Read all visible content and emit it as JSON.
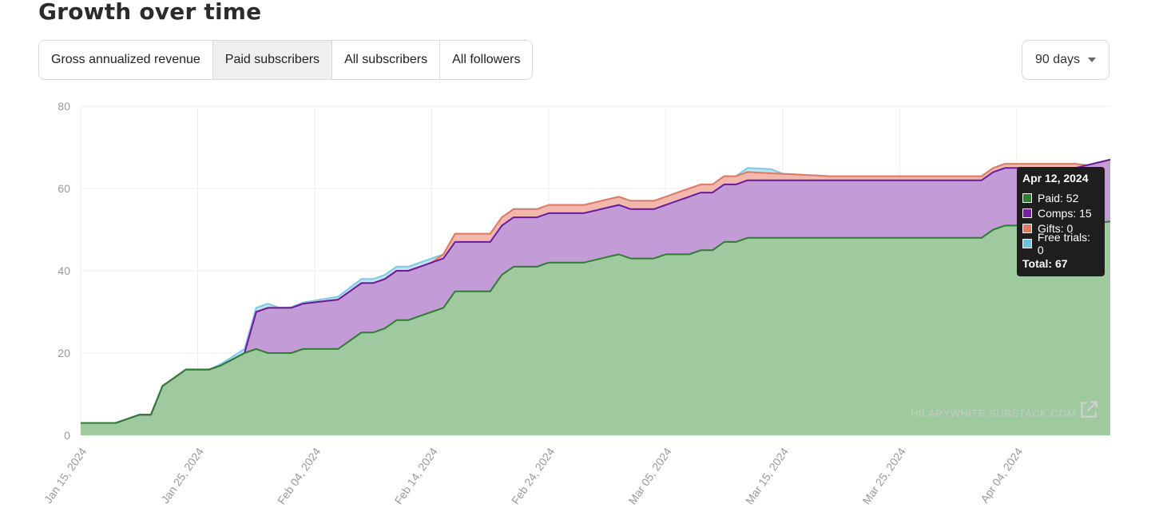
{
  "header": {
    "title": "Growth over time"
  },
  "tabs": [
    {
      "label": "Gross annualized revenue",
      "active": false
    },
    {
      "label": "Paid subscribers",
      "active": true
    },
    {
      "label": "All subscribers",
      "active": false
    },
    {
      "label": "All followers",
      "active": false
    }
  ],
  "range": {
    "label": "90 days",
    "icon": "caret-down-icon"
  },
  "tooltip": {
    "date": "Apr 12, 2024",
    "rows": [
      {
        "label": "Paid: 52",
        "color": "#2e7d32"
      },
      {
        "label": "Comps: 15",
        "color": "#7b1fa2"
      },
      {
        "label": "Gifts: 0",
        "color": "#e07a5f"
      },
      {
        "label": "Free trials: 0",
        "color": "#6fc3df"
      }
    ],
    "total": "Total: 67"
  },
  "watermark": "HILARYWHITE.SUBSTACK.COM",
  "colors": {
    "paid_line": "#2e7d32",
    "paid_fill": "#9fc99e",
    "comps_line": "#6a1b9a",
    "comps_fill": "#c39bd6",
    "gifts_line": "#e07a5f",
    "gifts_fill": "#f2b8ad",
    "trials_line": "#7ec8e3",
    "trials_fill": "#bfe3f0",
    "grid": "#eeeeee"
  },
  "chart_data": {
    "type": "area",
    "stacked": true,
    "title": "",
    "xlabel": "",
    "ylabel": "",
    "x_start": "Jan 15, 2024",
    "x_end": "Apr 12, 2024",
    "x_ticks": [
      "Jan 15, 2024",
      "Jan 25, 2024",
      "Feb 04, 2024",
      "Feb 14, 2024",
      "Feb 24, 2024",
      "Mar 05, 2024",
      "Mar 15, 2024",
      "Mar 25, 2024",
      "Apr 04, 2024"
    ],
    "y_ticks": [
      0,
      20,
      40,
      60,
      80
    ],
    "ylim": [
      0,
      80
    ],
    "grid": true,
    "series": [
      {
        "name": "Paid",
        "points": [
          [
            "Jan 15, 2024",
            3
          ],
          [
            "Jan 18, 2024",
            3
          ],
          [
            "Jan 20, 2024",
            5
          ],
          [
            "Jan 21, 2024",
            5
          ],
          [
            "Jan 22, 2024",
            12
          ],
          [
            "Jan 24, 2024",
            16
          ],
          [
            "Jan 26, 2024",
            16
          ],
          [
            "Jan 27, 2024",
            17
          ],
          [
            "Jan 29, 2024",
            20
          ],
          [
            "Jan 30, 2024",
            21
          ],
          [
            "Jan 31, 2024",
            20
          ],
          [
            "Feb 02, 2024",
            20
          ],
          [
            "Feb 03, 2024",
            21
          ],
          [
            "Feb 06, 2024",
            21
          ],
          [
            "Feb 08, 2024",
            25
          ],
          [
            "Feb 09, 2024",
            25
          ],
          [
            "Feb 10, 2024",
            26
          ],
          [
            "Feb 11, 2024",
            28
          ],
          [
            "Feb 12, 2024",
            28
          ],
          [
            "Feb 14, 2024",
            30
          ],
          [
            "Feb 15, 2024",
            31
          ],
          [
            "Feb 16, 2024",
            35
          ],
          [
            "Feb 19, 2024",
            35
          ],
          [
            "Feb 20, 2024",
            39
          ],
          [
            "Feb 21, 2024",
            41
          ],
          [
            "Feb 23, 2024",
            41
          ],
          [
            "Feb 24, 2024",
            42
          ],
          [
            "Feb 27, 2024",
            42
          ],
          [
            "Mar 01, 2024",
            44
          ],
          [
            "Mar 02, 2024",
            43
          ],
          [
            "Mar 04, 2024",
            43
          ],
          [
            "Mar 05, 2024",
            44
          ],
          [
            "Mar 07, 2024",
            44
          ],
          [
            "Mar 08, 2024",
            45
          ],
          [
            "Mar 09, 2024",
            45
          ],
          [
            "Mar 10, 2024",
            47
          ],
          [
            "Mar 11, 2024",
            47
          ],
          [
            "Mar 12, 2024",
            48
          ],
          [
            "Mar 19, 2024",
            48
          ],
          [
            "Apr 01, 2024",
            48
          ],
          [
            "Apr 02, 2024",
            50
          ],
          [
            "Apr 03, 2024",
            51
          ],
          [
            "Apr 09, 2024",
            51
          ],
          [
            "Apr 12, 2024",
            52
          ]
        ]
      },
      {
        "name": "Comps",
        "points": [
          [
            "Jan 15, 2024",
            0
          ],
          [
            "Jan 29, 2024",
            0
          ],
          [
            "Jan 30, 2024",
            9
          ],
          [
            "Jan 31, 2024",
            11
          ],
          [
            "Feb 02, 2024",
            11
          ],
          [
            "Feb 03, 2024",
            11
          ],
          [
            "Feb 06, 2024",
            12
          ],
          [
            "Feb 08, 2024",
            12
          ],
          [
            "Feb 09, 2024",
            12
          ],
          [
            "Feb 10, 2024",
            12
          ],
          [
            "Feb 11, 2024",
            12
          ],
          [
            "Feb 12, 2024",
            12
          ],
          [
            "Feb 14, 2024",
            12
          ],
          [
            "Feb 15, 2024",
            12
          ],
          [
            "Feb 16, 2024",
            12
          ],
          [
            "Feb 19, 2024",
            12
          ],
          [
            "Feb 20, 2024",
            12
          ],
          [
            "Feb 21, 2024",
            12
          ],
          [
            "Feb 23, 2024",
            12
          ],
          [
            "Feb 24, 2024",
            12
          ],
          [
            "Feb 27, 2024",
            12
          ],
          [
            "Mar 01, 2024",
            12
          ],
          [
            "Mar 02, 2024",
            12
          ],
          [
            "Mar 04, 2024",
            12
          ],
          [
            "Mar 05, 2024",
            12
          ],
          [
            "Mar 07, 2024",
            14
          ],
          [
            "Mar 08, 2024",
            14
          ],
          [
            "Mar 09, 2024",
            14
          ],
          [
            "Mar 10, 2024",
            14
          ],
          [
            "Mar 11, 2024",
            14
          ],
          [
            "Mar 12, 2024",
            14
          ],
          [
            "Mar 19, 2024",
            14
          ],
          [
            "Apr 01, 2024",
            14
          ],
          [
            "Apr 02, 2024",
            14
          ],
          [
            "Apr 03, 2024",
            14
          ],
          [
            "Apr 09, 2024",
            14
          ],
          [
            "Apr 12, 2024",
            15
          ]
        ]
      },
      {
        "name": "Gifts",
        "points": [
          [
            "Jan 15, 2024",
            0
          ],
          [
            "Feb 14, 2024",
            0
          ],
          [
            "Feb 15, 2024",
            1
          ],
          [
            "Feb 16, 2024",
            2
          ],
          [
            "Feb 19, 2024",
            2
          ],
          [
            "Feb 20, 2024",
            2
          ],
          [
            "Feb 21, 2024",
            2
          ],
          [
            "Feb 24, 2024",
            2
          ],
          [
            "Feb 27, 2024",
            2
          ],
          [
            "Mar 05, 2024",
            2
          ],
          [
            "Mar 12, 2024",
            2
          ],
          [
            "Mar 19, 2024",
            1
          ],
          [
            "Apr 01, 2024",
            1
          ],
          [
            "Apr 02, 2024",
            1
          ],
          [
            "Apr 03, 2024",
            1
          ],
          [
            "Apr 09, 2024",
            1
          ],
          [
            "Apr 10, 2024",
            0
          ],
          [
            "Apr 12, 2024",
            0
          ]
        ]
      },
      {
        "name": "Free trials",
        "points": [
          [
            "Jan 15, 2024",
            0
          ],
          [
            "Jan 26, 2024",
            0
          ],
          [
            "Jan 29, 2024",
            1
          ],
          [
            "Jan 30, 2024",
            1
          ],
          [
            "Jan 31, 2024",
            1
          ],
          [
            "Feb 01, 2024",
            0
          ],
          [
            "Feb 08, 2024",
            1
          ],
          [
            "Feb 11, 2024",
            1
          ],
          [
            "Feb 12, 2024",
            1
          ],
          [
            "Feb 14, 2024",
            1
          ],
          [
            "Feb 15, 2024",
            0
          ],
          [
            "Mar 11, 2024",
            0
          ],
          [
            "Mar 12, 2024",
            1
          ],
          [
            "Mar 14, 2024",
            1
          ],
          [
            "Mar 15, 2024",
            0
          ],
          [
            "Apr 12, 2024",
            0
          ]
        ]
      }
    ]
  }
}
